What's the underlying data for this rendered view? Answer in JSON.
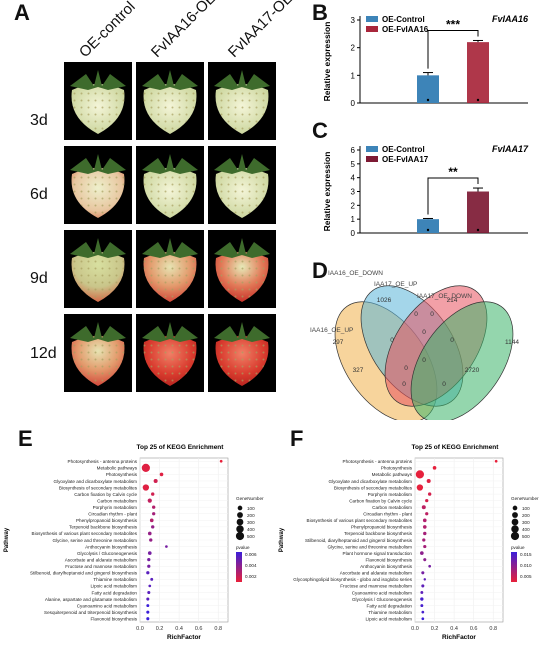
{
  "panels": {
    "A": "A",
    "B": "B",
    "C": "C",
    "D": "D",
    "E": "E",
    "F": "F"
  },
  "photo_grid": {
    "columns": [
      "OE-control",
      "FvIAA16-OE",
      "FvIAA17-OE"
    ],
    "rows": [
      "3d",
      "6d",
      "9d",
      "12d"
    ]
  },
  "chart_data": [
    {
      "type": "bar",
      "title": "FvIAA16",
      "ylabel": "Relative expression",
      "ylim": [
        0,
        3
      ],
      "yticks": [
        0,
        1,
        2,
        3
      ],
      "categories": [
        "OE-Control",
        "OE-FvIAA16"
      ],
      "values": [
        1.0,
        2.2
      ],
      "errors": [
        0.1,
        0.06
      ],
      "colors": [
        "#3d84b8",
        "#a8263b"
      ],
      "significance": "***",
      "legend": [
        "OE-Control",
        "OE-FvIAA16"
      ],
      "legend_position": "top-left"
    },
    {
      "type": "bar",
      "title": "FvIAA17",
      "ylabel": "Relative expression",
      "ylim": [
        0,
        6
      ],
      "yticks": [
        0,
        1,
        2,
        3,
        4,
        5,
        6
      ],
      "categories": [
        "OE-Control",
        "OE-FvIAA17"
      ],
      "values": [
        1.0,
        3.0
      ],
      "errors": [
        0.05,
        0.25
      ],
      "colors": [
        "#3d84b8",
        "#7d1a34"
      ],
      "significance": "**",
      "legend": [
        "OE-Control",
        "OE-FvIAA17"
      ],
      "legend_position": "top-left"
    },
    {
      "type": "venn",
      "sets": [
        "IAA16_OE_UP",
        "IAA16_OE_DOWN",
        "IAA17_OE_UP",
        "IAA17_OE_DOWN"
      ],
      "set_colors": [
        "#f0b04a",
        "#5ab4d8",
        "#e8525e",
        "#3cb56a"
      ],
      "region_values": [
        "297",
        "1026",
        "214",
        "1144",
        "0",
        "0",
        "0",
        "0",
        "327",
        "0",
        "0",
        "2720",
        "0",
        "0",
        "0"
      ]
    },
    {
      "type": "scatter",
      "title": "Top 25 of KEGG Enrichment",
      "xlabel": "RichFactor",
      "ylabel": "Pathway",
      "xlim": [
        0,
        0.9
      ],
      "xticks": [
        0.0,
        0.2,
        0.4,
        0.6,
        0.8
      ],
      "pathways": [
        "Photosynthesis - antenna proteins",
        "Metabolic pathways",
        "Photosynthesis",
        "Glyoxylate and dicarboxylate metabolism",
        "Biosynthesis of secondary metabolites",
        "Carbon fixation by Calvin cycle",
        "Carbon metabolism",
        "Porphyrin metabolism",
        "Circadian rhythm - plant",
        "Phenylpropanoid biosynthesis",
        "Terpenoid backbone biosynthesis",
        "Biosynthesis of various plant secondary metabolites",
        "Glycine, serine and threonine metabolism",
        "Anthocyanin biosynthesis",
        "Glycolysis / Gluconeogenesis",
        "Ascorbate and aldarate metabolism",
        "Fructose and mannose metabolism",
        "Stilbenoid, diarylheptanoid and gingerol biosynthesis",
        "Thiamine metabolism",
        "Lipoic acid metabolism",
        "Fatty acid degradation",
        "Alanine, aspartate and glutamate metabolism",
        "Cyanoamino acid metabolism",
        "Sesquiterpenoid and triterpenoid biosynthesis",
        "Flavonoid biosynthesis"
      ],
      "richfactor": [
        0.83,
        0.06,
        0.22,
        0.16,
        0.06,
        0.13,
        0.1,
        0.14,
        0.14,
        0.12,
        0.13,
        0.1,
        0.11,
        0.27,
        0.1,
        0.09,
        0.09,
        0.08,
        0.12,
        0.1,
        0.09,
        0.08,
        0.08,
        0.08,
        0.08
      ],
      "gene_number": [
        10,
        500,
        40,
        60,
        250,
        30,
        70,
        30,
        25,
        40,
        30,
        40,
        30,
        10,
        40,
        25,
        25,
        25,
        15,
        10,
        20,
        20,
        15,
        20,
        20
      ],
      "pvalue": [
        0.0002,
        0.0005,
        0.0005,
        0.001,
        0.0005,
        0.001,
        0.0015,
        0.002,
        0.0025,
        0.002,
        0.003,
        0.003,
        0.003,
        0.004,
        0.004,
        0.004,
        0.004,
        0.005,
        0.005,
        0.005,
        0.005,
        0.005,
        0.006,
        0.006,
        0.006
      ],
      "size_legend_title": "GeneNumber",
      "size_legend_values": [
        "100",
        "200",
        "300",
        "400",
        "500"
      ],
      "color_legend_title": "pvalue",
      "color_legend_values": [
        "0.006",
        "0.004",
        "0.002"
      ]
    },
    {
      "type": "scatter",
      "title": "Top 25 of KEGG Enrichment",
      "xlabel": "RichFactor",
      "ylabel": "Pathway",
      "xlim": [
        0,
        0.9
      ],
      "xticks": [
        0.0,
        0.2,
        0.4,
        0.6,
        0.8
      ],
      "pathways": [
        "Photosynthesis - antenna proteins",
        "Photosynthesis",
        "Metabolic pathways",
        "Glyoxylate and dicarboxylate metabolism",
        "Biosynthesis of secondary metabolites",
        "Porphyrin metabolism",
        "Carbon fixation by Calvin cycle",
        "Carbon metabolism",
        "Circadian rhythm - plant",
        "Biosynthesis of various plant secondary metabolites",
        "Phenylpropanoid biosynthesis",
        "Terpenoid backbone biosynthesis",
        "Stilbenoid, diarylheptanoid and gingerol biosynthesis",
        "Glycine, serine and threonine metabolism",
        "Plant hormone signal transduction",
        "Flavonoid biosynthesis",
        "Anthocyanin biosynthesis",
        "Ascorbate and aldarate metabolism",
        "Glycosphingolipid biosynthesis - globo and isoglobo series",
        "Fructose and mannose metabolism",
        "Cyanoamino acid metabolism",
        "Glycolysis / Gluconeogenesis",
        "Fatty acid degradation",
        "Thiamine metabolism",
        "Lipoic acid metabolism"
      ],
      "richfactor": [
        0.83,
        0.2,
        0.05,
        0.14,
        0.05,
        0.15,
        0.12,
        0.09,
        0.12,
        0.1,
        0.1,
        0.1,
        0.09,
        0.1,
        0.07,
        0.1,
        0.15,
        0.08,
        0.1,
        0.08,
        0.07,
        0.07,
        0.07,
        0.08,
        0.08
      ],
      "gene_number": [
        10,
        40,
        500,
        60,
        250,
        30,
        25,
        60,
        25,
        40,
        40,
        30,
        25,
        25,
        40,
        20,
        10,
        20,
        5,
        20,
        15,
        30,
        15,
        10,
        10
      ],
      "pvalue": [
        0.0003,
        0.0005,
        0.0005,
        0.001,
        0.0005,
        0.002,
        0.002,
        0.004,
        0.004,
        0.005,
        0.005,
        0.006,
        0.006,
        0.006,
        0.008,
        0.008,
        0.01,
        0.01,
        0.012,
        0.012,
        0.012,
        0.014,
        0.014,
        0.014,
        0.015
      ],
      "size_legend_title": "GeneNumber",
      "size_legend_values": [
        "100",
        "200",
        "300",
        "400",
        "500"
      ],
      "color_legend_title": "pvalue",
      "color_legend_values": [
        "0.015",
        "0.010",
        "0.005"
      ]
    }
  ]
}
